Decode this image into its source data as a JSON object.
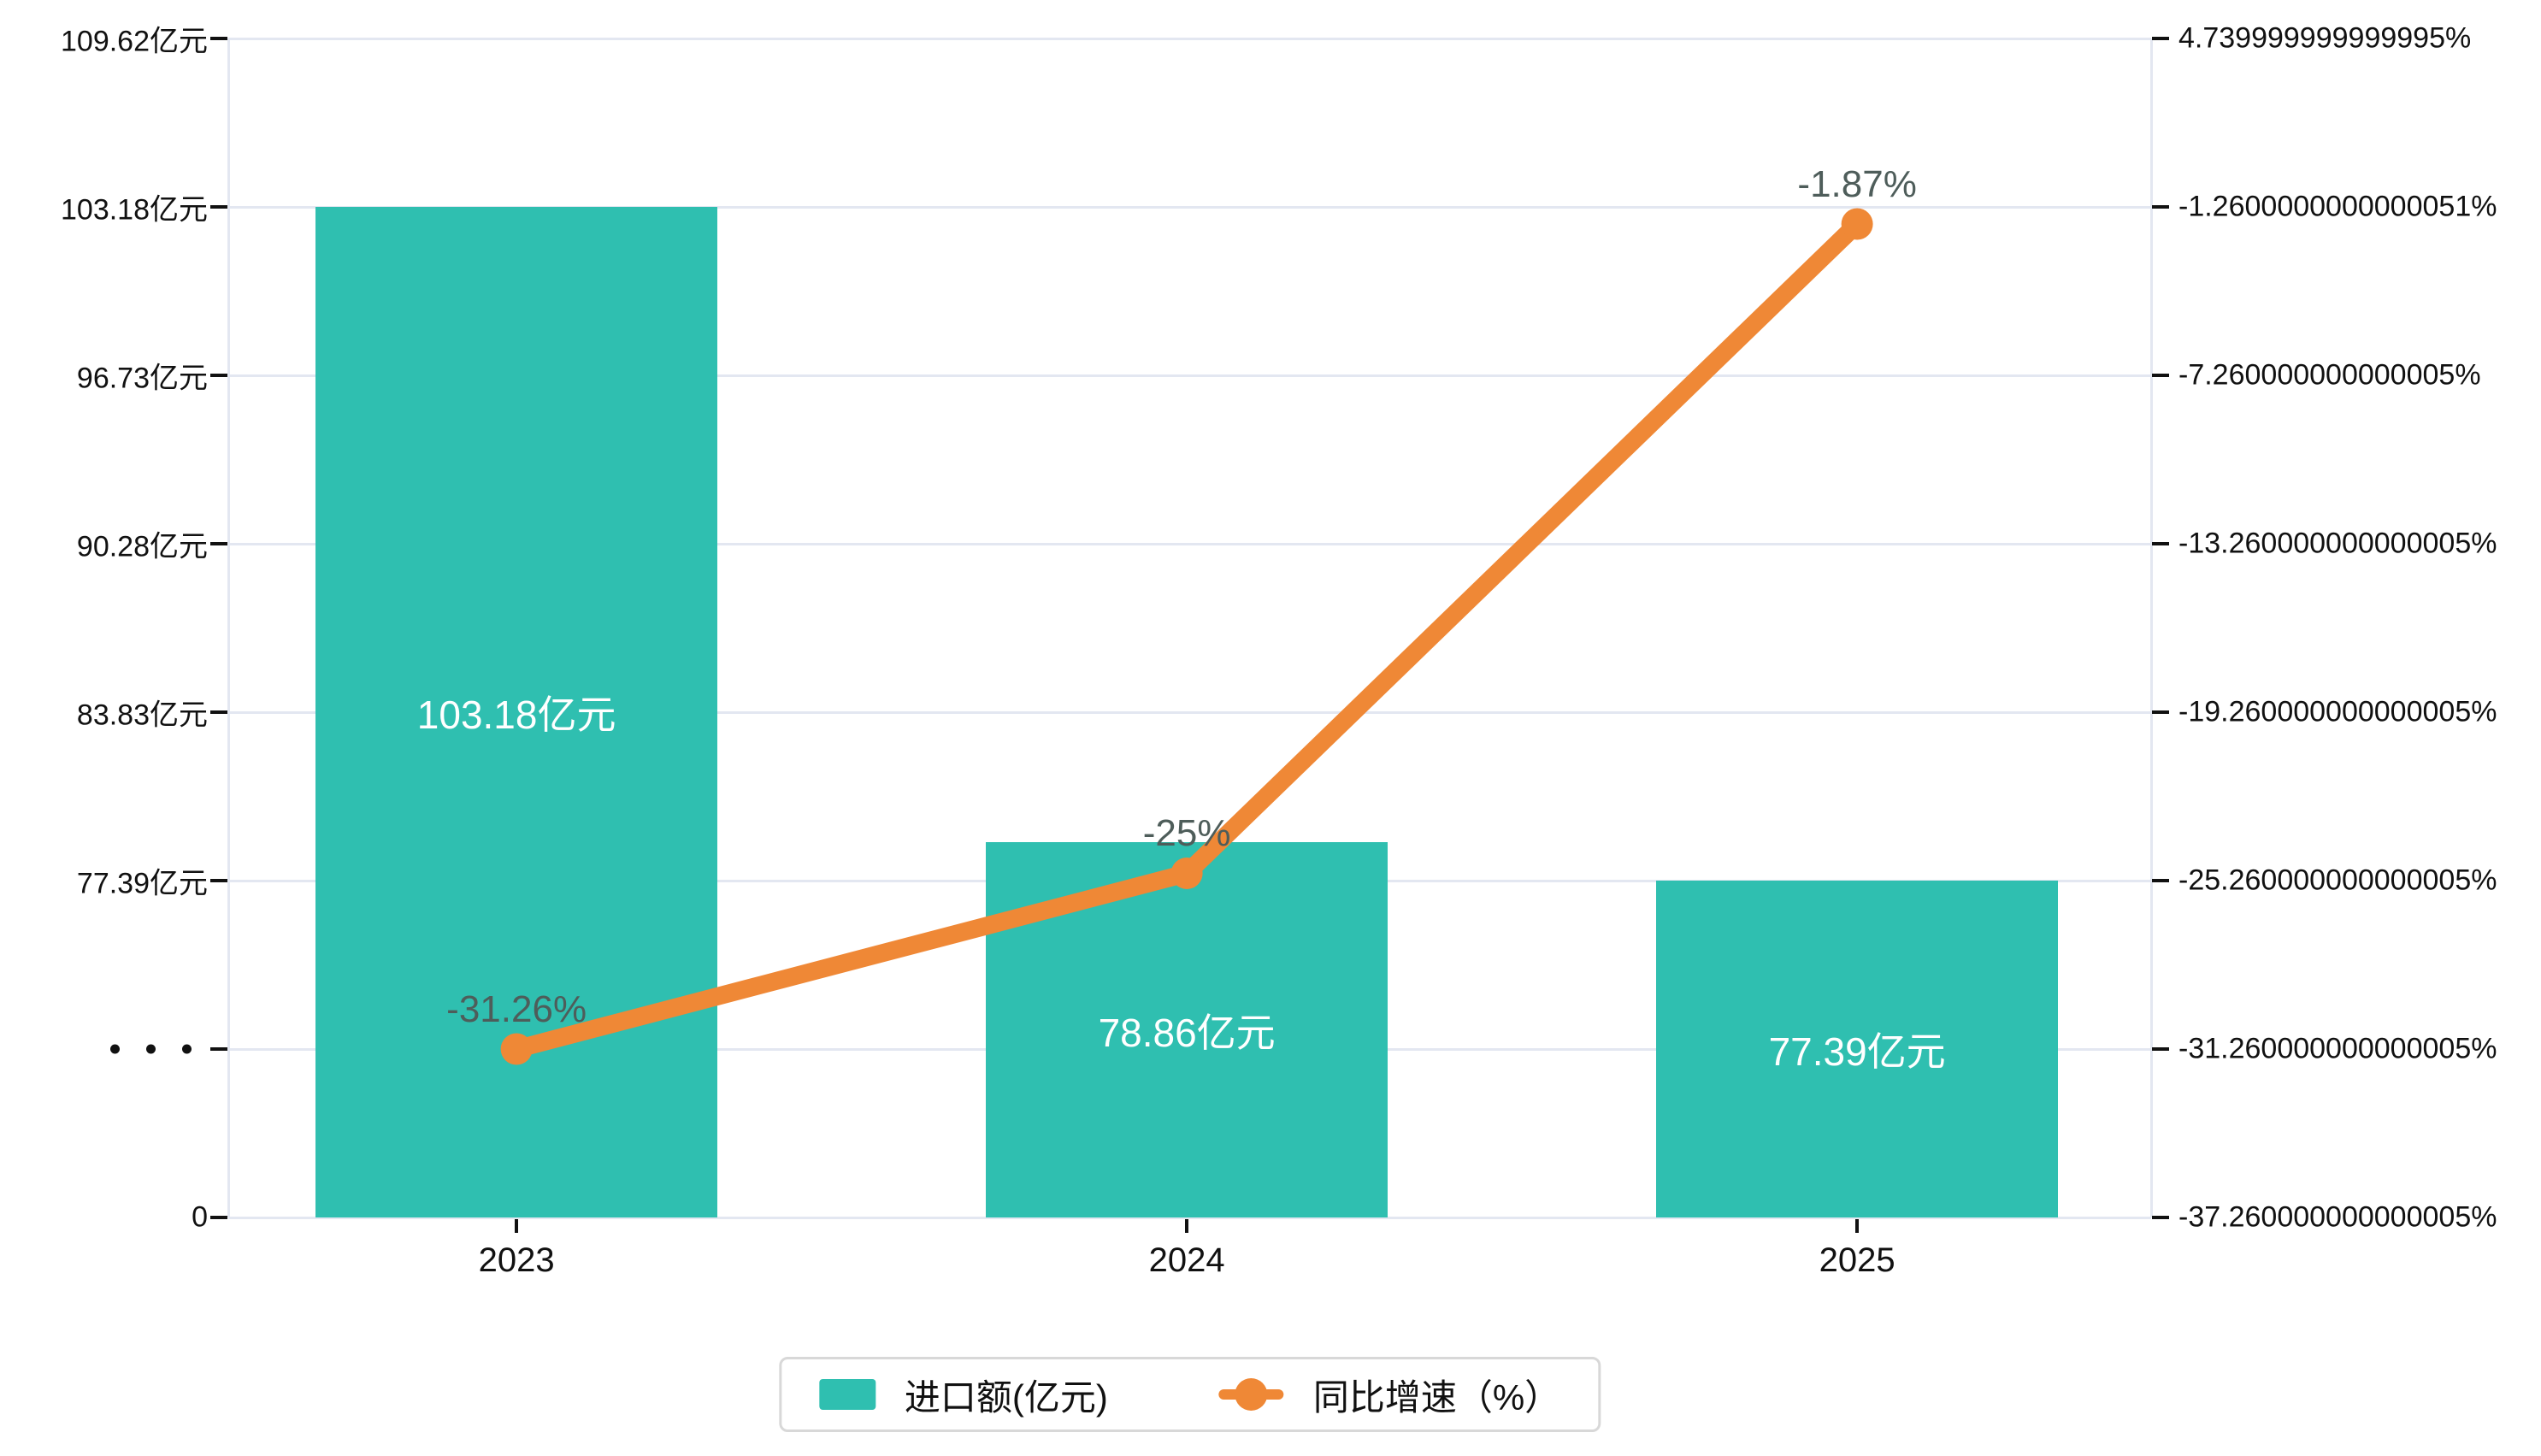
{
  "chart_data": {
    "type": "bar",
    "subtype": "bar-line-combo",
    "categories": [
      "2023",
      "2024",
      "2025"
    ],
    "series": [
      {
        "name": "进口额(亿元)",
        "type": "bar",
        "values": [
          103.18,
          78.86,
          77.39
        ],
        "labels": [
          "103.18亿元",
          "78.86亿元",
          "77.39亿元"
        ],
        "color": "#2fbfb0"
      },
      {
        "name": "同比增速（%）",
        "type": "line",
        "values": [
          -31.26,
          -25,
          -1.87
        ],
        "labels": [
          "-31.26%",
          "-25%",
          "-1.87%"
        ],
        "color": "#ef8836"
      }
    ],
    "left_axis": {
      "tick_labels": [
        "109.62亿元",
        "103.18亿元",
        "96.73亿元",
        "90.28亿元",
        "83.83亿元",
        "77.39亿元",
        "···",
        "0"
      ],
      "tick_values": [
        109.62,
        103.18,
        96.73,
        90.28,
        83.83,
        77.39,
        null,
        0
      ],
      "has_break": true,
      "break_row_index": 6
    },
    "right_axis": {
      "tick_labels": [
        "4.739999999999995%",
        "-1.2600000000000051%",
        "-7.260000000000005%",
        "-13.260000000000005%",
        "-19.260000000000005%",
        "-25.260000000000005%",
        "-31.260000000000005%",
        "-37.260000000000005%"
      ],
      "max": 4.74,
      "min": -37.26
    },
    "x_axis": {
      "labels": [
        "2023",
        "2024",
        "2025"
      ]
    },
    "legend": [
      {
        "label": "进口额(亿元)",
        "marker": "bar-swatch",
        "color": "#2fbfb0"
      },
      {
        "label": "同比增速（%）",
        "marker": "line-dot",
        "color": "#ef8836"
      }
    ],
    "legend_position": "bottom",
    "grid": true,
    "label_colors": {
      "bar_value": "#ffffff",
      "line_value": "#4e5d5a"
    }
  }
}
